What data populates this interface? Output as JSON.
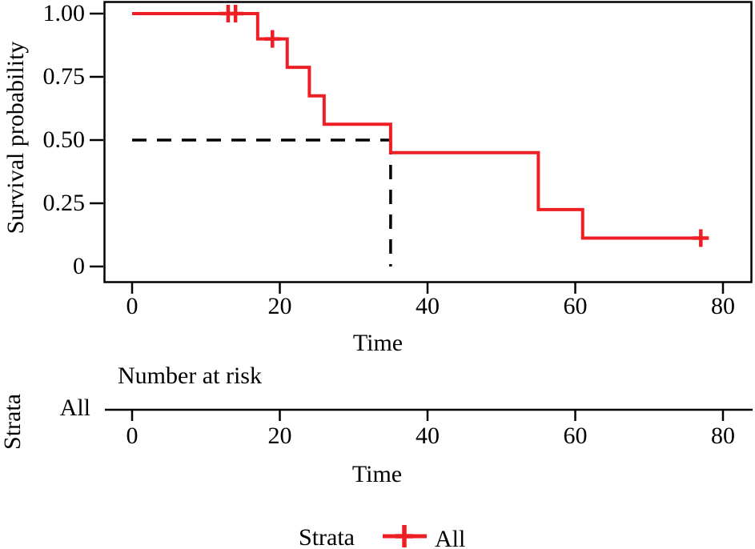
{
  "figure": {
    "main_plot": {
      "ylabel": "Survival probability",
      "xlabel": "Time",
      "y_tick_labels": [
        "1.00",
        "0.75",
        "0.50",
        "0.25",
        "0"
      ],
      "x_tick_labels": [
        "0",
        "20",
        "40",
        "60",
        "80"
      ]
    },
    "risk_table": {
      "title": "Number at risk",
      "axis_title": "Strata",
      "rows": [
        {
          "label": "All",
          "values": []
        }
      ],
      "x_tick_labels": [
        "0",
        "20",
        "40",
        "60",
        "80"
      ],
      "xlabel": "Time"
    },
    "legend": {
      "label": "Strata",
      "items": [
        {
          "label": "All",
          "color": "#ED1E24"
        }
      ]
    }
  },
  "chart_data": {
    "type": "line",
    "subtype": "kaplan-meier-step-curve",
    "title": "",
    "xlabel": "Time",
    "ylabel": "Survival probability",
    "xlim": [
      0,
      84
    ],
    "ylim": [
      0,
      1
    ],
    "x_tick_values": [
      0,
      20,
      40,
      60,
      80
    ],
    "y_tick_values": [
      1.0,
      0.75,
      0.5,
      0.25,
      0
    ],
    "grid": false,
    "legend_position": "bottom",
    "series": [
      {
        "name": "All",
        "color": "#ED1E24",
        "step_points": [
          [
            0,
            1.0
          ],
          [
            17,
            0.9
          ],
          [
            21,
            0.7875
          ],
          [
            24,
            0.675
          ],
          [
            26,
            0.5625
          ],
          [
            35,
            0.45
          ],
          [
            55,
            0.225
          ],
          [
            61,
            0.1125
          ]
        ],
        "end_time": 78,
        "censor_marks": [
          [
            13,
            1.0
          ],
          [
            14,
            1.0
          ],
          [
            19,
            0.9
          ],
          [
            77,
            0.1125
          ]
        ]
      }
    ],
    "median_line": {
      "time": 35,
      "survival": 0.5,
      "style": "dashed",
      "color": "#000000"
    }
  }
}
